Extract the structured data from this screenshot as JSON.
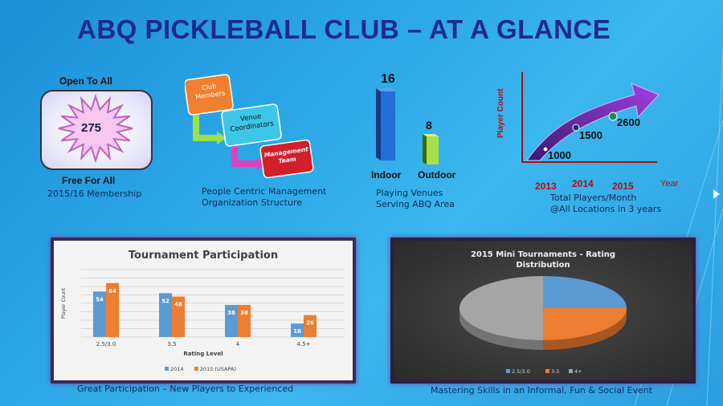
{
  "title": "ABQ PICKLEBALL CLUB – AT A GLANCE",
  "membership": {
    "top": "Open To All",
    "count": "275",
    "bottom": "Free For All",
    "caption": "2015/16 Membership"
  },
  "org": {
    "box1": "Club Members",
    "box2": "Venue Coordinators",
    "box3": "Management Team",
    "caption_line1": "People Centric Management",
    "caption_line2": "Organization Structure",
    "colors": {
      "box1": "#f08030",
      "box2": "#3ec6ea",
      "box3": "#d0202a"
    }
  },
  "venues": {
    "indoor_count": "16",
    "outdoor_count": "8",
    "indoor_label": "Indoor",
    "outdoor_label": "Outdoor",
    "caption_line1": "Playing Venues",
    "caption_line2": "Serving ABQ Area"
  },
  "growth": {
    "ylabel": "Player Count",
    "xlabel": "Year",
    "years": [
      "2013",
      "2014",
      "2015"
    ],
    "values": [
      "1000",
      "1500",
      "2600"
    ],
    "caption_line1": "Total Players/Month",
    "caption_line2": "@All Locations in 3 years"
  },
  "chart_data": [
    {
      "type": "bar",
      "title": "Tournament Participation",
      "xlabel": "Rating Level",
      "ylabel": "Player Count",
      "categories": [
        "2.5/3.0",
        "3.5",
        "4",
        "4.5+"
      ],
      "series": [
        {
          "name": "2014",
          "values": [
            54,
            52,
            38,
            16
          ],
          "color": "#5b9bd5"
        },
        {
          "name": "2015 (USAPA)",
          "values": [
            64,
            48,
            38,
            26
          ],
          "color": "#ed7d31"
        }
      ],
      "ylim": [
        0,
        80
      ],
      "grid": true,
      "legend": "bottom"
    },
    {
      "type": "pie",
      "title": "2015 Mini Tournaments - Rating Distribution",
      "categories": [
        "2.5/3.0",
        "3.5",
        "4+"
      ],
      "values": [
        25,
        25,
        50
      ],
      "colors": [
        "#5b9bd5",
        "#ed7d31",
        "#a5a5a5"
      ],
      "legend": "bottom"
    }
  ],
  "captions": {
    "bar": "Great Participation – New Players to Experienced",
    "pie": "Mastering Skills in an Informal, Fun & Social Event"
  }
}
